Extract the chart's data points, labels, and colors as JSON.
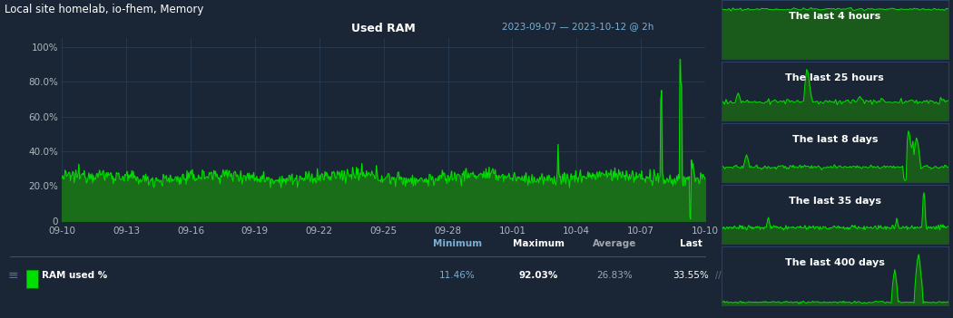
{
  "bg_color": "#1a2535",
  "chart_bg": "#1a2535",
  "panel_bg": "#1e2d3e",
  "title_main": "Local site homelab, io-fhem, Memory",
  "chart_title": "Used RAM",
  "date_range": "2023-09-07 — 2023-10-12 @ 2h",
  "yticks": [
    "0",
    "20.0%",
    "40.0%",
    "60.0%",
    "80.0%",
    "100%"
  ],
  "ytick_vals": [
    0,
    20,
    40,
    60,
    80,
    100
  ],
  "xtick_labels": [
    "09-10",
    "09-13",
    "09-16",
    "09-19",
    "09-22",
    "09-25",
    "09-28",
    "10-01",
    "10-04",
    "10-07",
    "10-10"
  ],
  "legend_label": "RAM used %",
  "minimum": "11.46%",
  "maximum": "92.03%",
  "average": "26.83%",
  "last": "33.55%",
  "line_color": "#00e000",
  "fill_color": "#1a6e1a",
  "axis_text_color": "#b0b8c0",
  "grid_color": "#2a3f58",
  "thumbnail_labels": [
    "The last 4 hours",
    "The last 25 hours",
    "The last 8 days",
    "The last 35 days",
    "The last 400 days"
  ],
  "thumbnail_border": "#2a4060",
  "thumbnail_bg": "#1a2535"
}
